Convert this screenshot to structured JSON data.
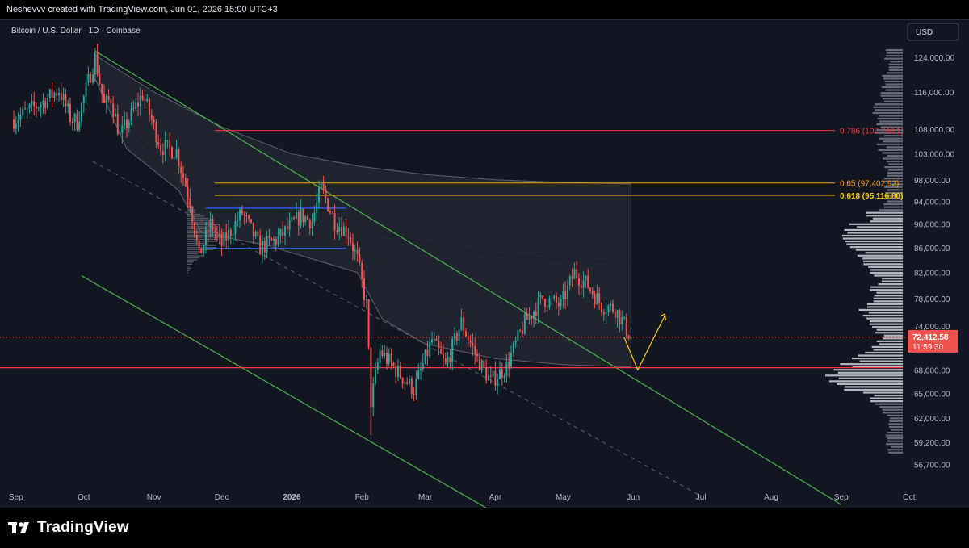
{
  "header": {
    "attribution": "Neshevvv created with TradingView.com, Jun 01, 2026 15:00 UTC+3"
  },
  "footer": {
    "brand": "TradingView"
  },
  "colors": {
    "up": "#26a69a",
    "down": "#ef5350",
    "bg": "#131722",
    "axis_text": "#b2b5be",
    "fib_786": "#f23645",
    "fib_65": "#ff9800",
    "fib_618": "#f7c500",
    "channel": "#4caf50",
    "support": "#f23645",
    "box": "#2962ff",
    "projection": "#f7c500"
  },
  "chart_data": {
    "type": "candlestick",
    "title": "Bitcoin / U.S. Dollar · 1D · Coinbase",
    "currency_label": "USD",
    "x_ticks": [
      "Sep",
      "Oct",
      "Nov",
      "Dec",
      "2026",
      "Feb",
      "Mar",
      "Apr",
      "May",
      "Jun",
      "Jul",
      "Aug",
      "Sep",
      "Oct"
    ],
    "y_ticks": [
      124000,
      116000,
      108000,
      103000,
      98000,
      94000,
      90000,
      86000,
      82000,
      78000,
      74000,
      68000,
      65000,
      62000,
      59200,
      56700
    ],
    "y_tick_labels": [
      "124,000.00",
      "116,000.00",
      "108,000.00",
      "103,000.00",
      "98,000.00",
      "94,000.00",
      "90,000.00",
      "86,000.00",
      "82,000.00",
      "78,000.00",
      "74,000.00",
      "68,000.00",
      "65,000.00",
      "62,000.00",
      "59,200.00",
      "56,700.00"
    ],
    "y_scale": "log",
    "last_price": {
      "value": 72412.58,
      "label": "72,412.58",
      "countdown": "11:59:30"
    },
    "fib_levels": [
      {
        "ratio": "0.786",
        "price": 107748.1,
        "label": "0.786 (107,748.1)"
      },
      {
        "ratio": "0.65",
        "price": 97402.92,
        "label": "0.65 (97,402.92)"
      },
      {
        "ratio": "0.618",
        "price": 95116.8,
        "label": "0.618 (95,116.80)"
      }
    ],
    "support_level": 68300,
    "range_box": {
      "start": "2025-12-01",
      "end": "2026-01-20",
      "top": 92800,
      "bottom": 85900
    },
    "descending_channel": {
      "upper": [
        [
          "2025-10-06",
          125500
        ],
        [
          "2026-09-01",
          52500
        ]
      ],
      "lower": [
        [
          "2025-09-30",
          81500
        ],
        [
          "2026-04-10",
          50500
        ]
      ],
      "mid": [
        [
          "2025-10-05",
          101500
        ],
        [
          "2026-06-30",
          53500
        ]
      ]
    },
    "projection": [
      [
        "2026-05-28",
        72400
      ],
      [
        "2026-06-03",
        68000
      ],
      [
        "2026-06-15",
        75500
      ]
    ],
    "grid": false,
    "legend": "none"
  }
}
